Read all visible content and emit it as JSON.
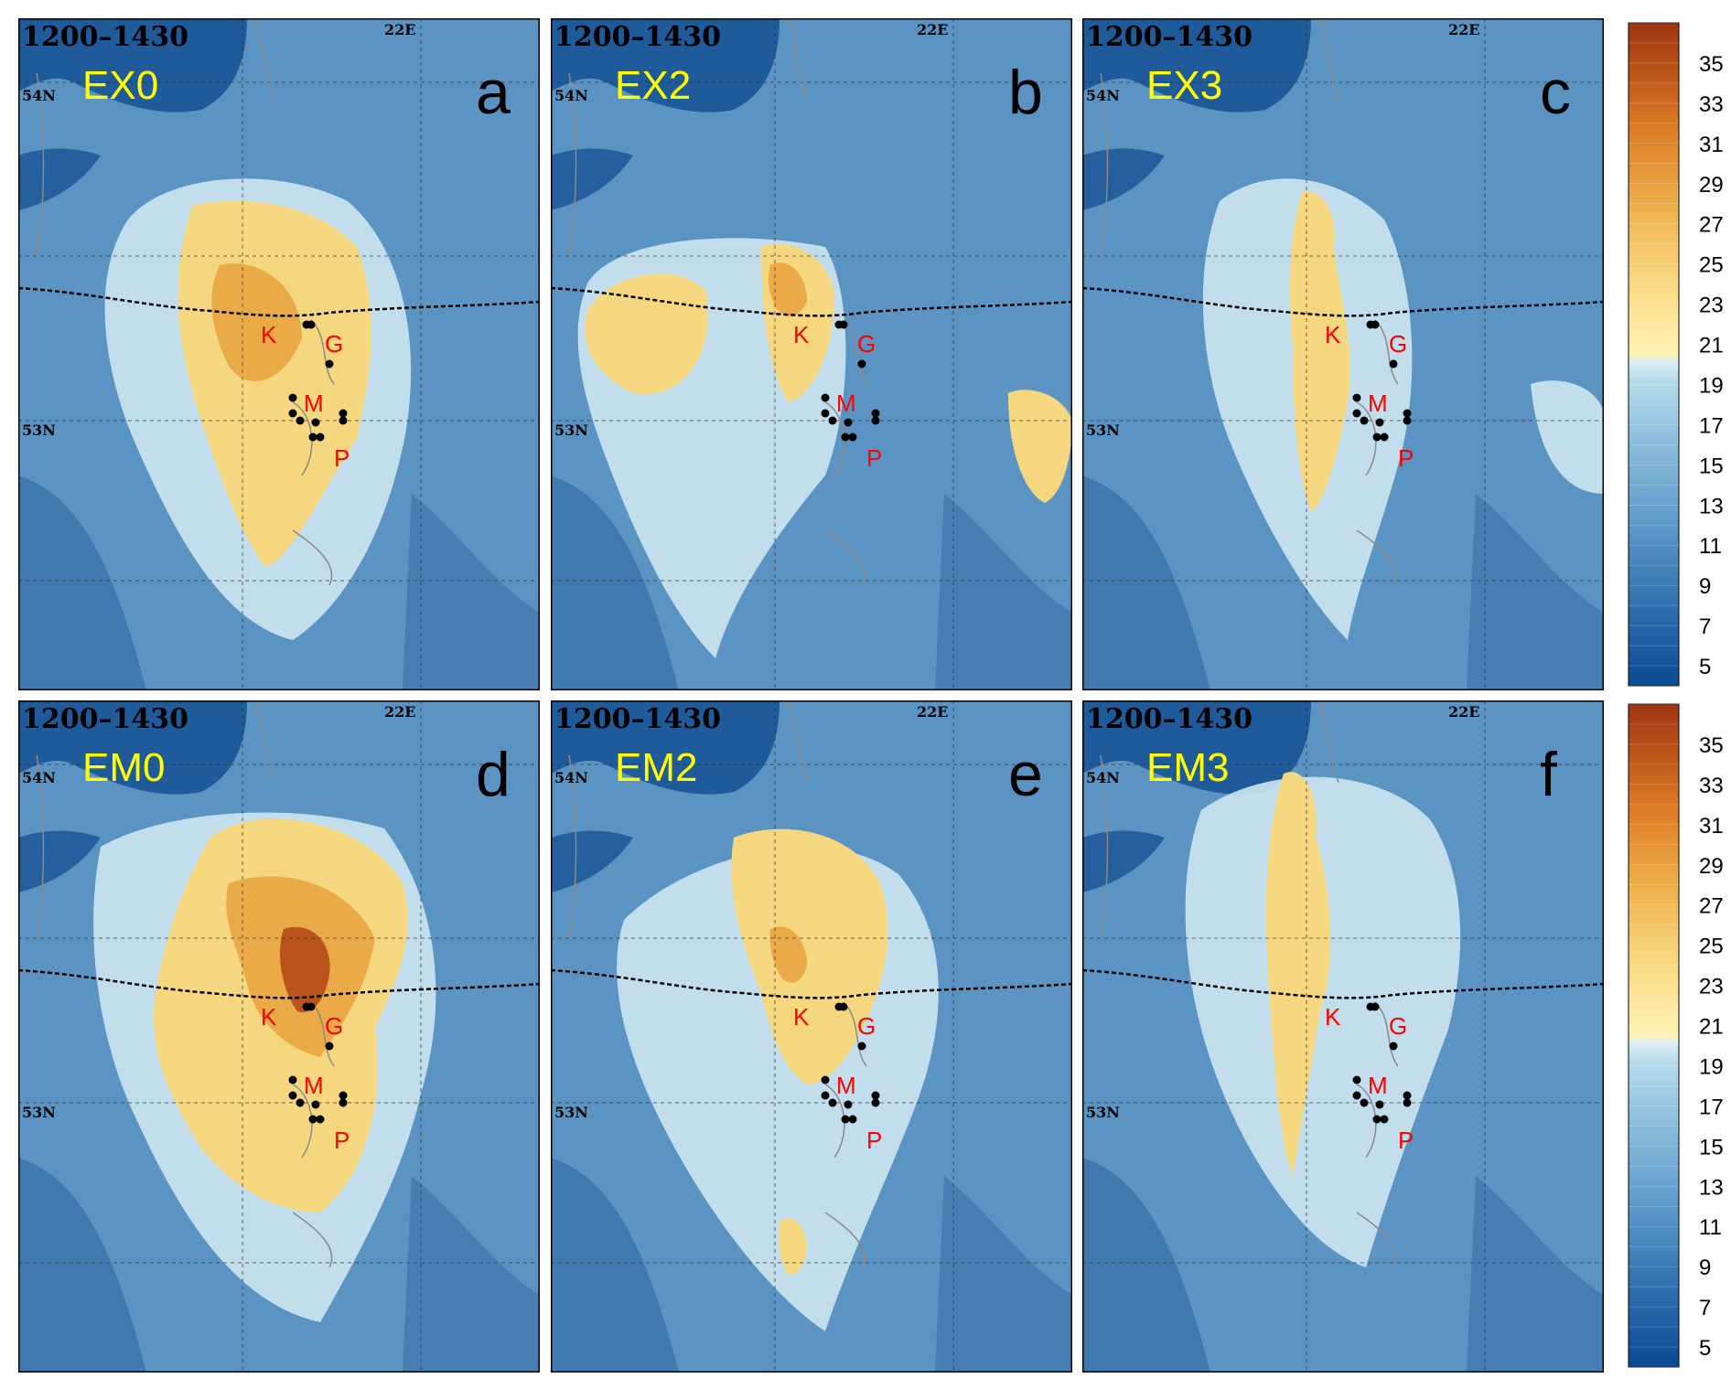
{
  "figure": {
    "panels": [
      {
        "id": "a",
        "experiment": "EX0",
        "time": "1200–1430",
        "letter": "a"
      },
      {
        "id": "b",
        "experiment": "EX2",
        "time": "1200–1430",
        "letter": "b"
      },
      {
        "id": "c",
        "experiment": "EX3",
        "time": "1200–1430",
        "letter": "c"
      },
      {
        "id": "d",
        "experiment": "EM0",
        "time": "1200–1430",
        "letter": "d"
      },
      {
        "id": "e",
        "experiment": "EM2",
        "time": "1200–1430",
        "letter": "e"
      },
      {
        "id": "f",
        "experiment": "EM3",
        "time": "1200–1430",
        "letter": "f"
      }
    ],
    "graticule_labels": {
      "lon": "22E",
      "lat_upper": "54N",
      "lat_lower": "53N"
    },
    "city_labels": [
      "K",
      "G",
      "M",
      "P"
    ],
    "colorbar": {
      "ticks": [
        5,
        7,
        9,
        11,
        13,
        15,
        17,
        19,
        21,
        23,
        25,
        27,
        29,
        31,
        33,
        35
      ],
      "min": 4,
      "max": 37
    },
    "colors": {
      "background_blue": "#5b93c2",
      "deep_blue": "#1f5a9a",
      "light_blue": "#cde6f1",
      "yellow": "#f4d77e",
      "orange": "#e9a23e",
      "dark_orange": "#b64a16",
      "label_yellow": "#ffff00",
      "label_red": "#ff0000",
      "boundary": "#000000"
    }
  }
}
